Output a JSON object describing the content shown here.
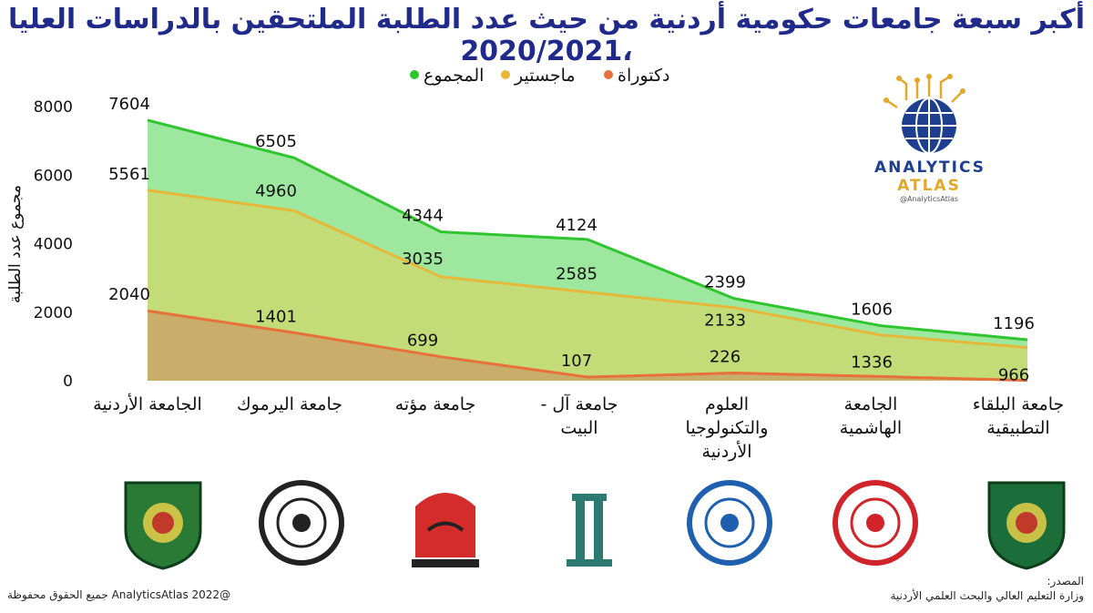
{
  "header": {
    "title": "أكبر سبعة جامعات حكومية أردنية من حيث عدد الطلبة الملتحقين بالدراسات العليا ،2020/2021"
  },
  "chart_data": {
    "type": "area",
    "title": "أكبر سبعة جامعات حكومية أردنية من حيث عدد الطلبة الملتحقين بالدراسات العليا ،2020/2021",
    "ylabel": "مجموع عدد الطلبة",
    "xlabel": "",
    "ylim": [
      0,
      8000
    ],
    "yticks": [
      "0",
      "2000",
      "4000",
      "6000",
      "8000"
    ],
    "grid": false,
    "legend_position": "top",
    "categories": [
      [
        "الجامعة الأردنية"
      ],
      [
        "جامعة اليرموك"
      ],
      [
        "جامعة مؤته"
      ],
      [
        "جامعة آل -",
        "البيت"
      ],
      [
        "العلوم",
        "والتكنولوجيا",
        "الأردنية"
      ],
      [
        "الجامعة",
        "الهاشمية"
      ],
      [
        "جامعة البلقاء",
        "التطبيقية"
      ]
    ],
    "series": [
      {
        "name": "المجموع",
        "color": "#2ec52e",
        "fill": "#9de89e",
        "values": [
          7604,
          6505,
          4344,
          4124,
          2399,
          1606,
          1196
        ],
        "labels": [
          "7604",
          "6505",
          "4344",
          "4124",
          "2399",
          "1606",
          "1196"
        ]
      },
      {
        "name": "ماجستير",
        "color": "#e6b83a",
        "fill": "#c3dc78",
        "values": [
          5561,
          4960,
          3035,
          2585,
          2133,
          1336,
          966
        ],
        "labels": [
          "5561",
          "4960",
          "3035",
          "2585",
          "2133",
          "1336",
          "966"
        ]
      },
      {
        "name": "دكتوراة",
        "color": "#e8703a",
        "fill": "#c9ad6a",
        "values": [
          2040,
          1401,
          699,
          107,
          226,
          123,
          10
        ],
        "labels": [
          "2040",
          "1401",
          "699",
          "107",
          "226",
          "",
          ""
        ]
      }
    ]
  },
  "brand": {
    "word1": "ANALYTICS",
    "word2": "ATLAS",
    "handle": "@AnalyticsAtlas",
    "color_blue": "#1e3f8f",
    "color_gold": "#e3a82b"
  },
  "logos": [
    {
      "icon": "university-of-jordan-logo",
      "color": "#2a7a35"
    },
    {
      "icon": "yarmouk-university-logo",
      "color": "#222222"
    },
    {
      "icon": "mutah-university-logo",
      "color": "#d42b2b"
    },
    {
      "icon": "al-al-bayt-university-logo",
      "color": "#2d7a72"
    },
    {
      "icon": "just-university-logo",
      "color": "#1e5fb0"
    },
    {
      "icon": "hashemite-university-logo",
      "color": "#d0242a"
    },
    {
      "icon": "al-balqa-applied-university-logo",
      "color": "#1b6e3a"
    }
  ],
  "footer": {
    "copyright": "@AnalyticsAtlas 2022 جميع الحقوق محفوظة",
    "source_label": "المصدر:",
    "source_text": "وزارة التعليم العالي والبحث العلمي الأردنية"
  }
}
